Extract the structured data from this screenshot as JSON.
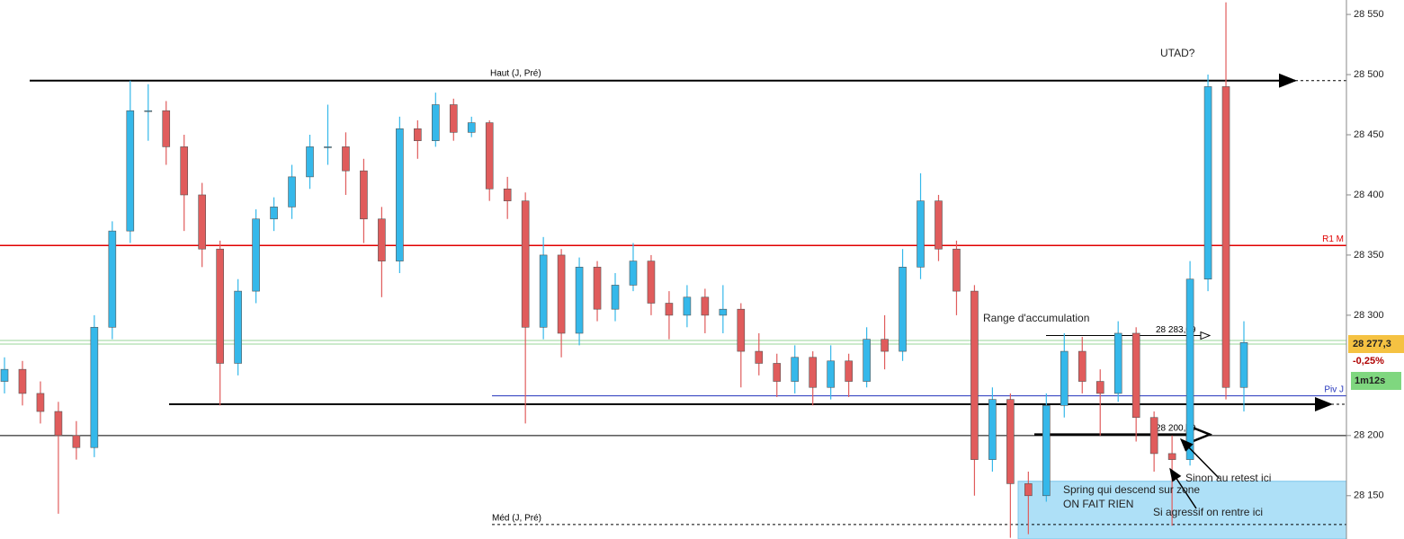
{
  "chart_data": {
    "type": "candlestick",
    "ylim": [
      28114,
      28562
    ],
    "yticks": [
      {
        "value": 28150,
        "label": "28 150"
      },
      {
        "value": 28200,
        "label": "28 200"
      },
      {
        "value": 28300,
        "label": "28 300"
      },
      {
        "value": 28350,
        "label": "28 350"
      },
      {
        "value": 28400,
        "label": "28 400"
      },
      {
        "value": 28450,
        "label": "28 450"
      },
      {
        "value": 28500,
        "label": "28 500"
      },
      {
        "value": 28550,
        "label": "28 550"
      }
    ],
    "up_color": "#35b8ea",
    "down_color": "#e05c5c",
    "series": {
      "open": [
        28245,
        28255,
        28235,
        28220,
        28200,
        28190,
        28290,
        28370,
        28470,
        28470,
        28440,
        28400,
        28355,
        28260,
        28320,
        28380,
        28390,
        28415,
        28440,
        28440,
        28420,
        28380,
        28345,
        28455,
        28445,
        28475,
        28452,
        28460,
        28405,
        28395,
        28290,
        28350,
        28285,
        28340,
        28305,
        28325,
        28345,
        28310,
        28300,
        28315,
        28300,
        28305,
        28270,
        28260,
        28245,
        28265,
        28240,
        28262,
        28245,
        28280,
        28270,
        28340,
        28395,
        28355,
        28320,
        28180,
        28230,
        28160,
        28150,
        28225,
        28270,
        28245,
        28235,
        28285,
        28215,
        28185,
        28180,
        28330,
        28490,
        28240
      ],
      "high": [
        28265,
        28262,
        28245,
        28228,
        28212,
        28300,
        28378,
        28495,
        28492,
        28478,
        28450,
        28410,
        28362,
        28330,
        28388,
        28398,
        28425,
        28450,
        28475,
        28452,
        28430,
        28390,
        28465,
        28462,
        28485,
        28480,
        28465,
        28462,
        28415,
        28402,
        28365,
        28355,
        28348,
        28345,
        28335,
        28360,
        28350,
        28320,
        28325,
        28322,
        28325,
        28310,
        28285,
        28268,
        28275,
        28270,
        28275,
        28268,
        28290,
        28300,
        28355,
        28418,
        28400,
        28362,
        28325,
        28240,
        28235,
        28170,
        28235,
        28285,
        28282,
        28255,
        28295,
        28290,
        28220,
        28200,
        28345,
        28500,
        28560,
        28295
      ],
      "low": [
        28235,
        28225,
        28210,
        28135,
        28180,
        28182,
        28280,
        28360,
        28445,
        28425,
        28370,
        28340,
        28225,
        28250,
        28310,
        28370,
        28380,
        28405,
        28425,
        28400,
        28360,
        28315,
        28335,
        28430,
        28440,
        28445,
        28448,
        28395,
        28380,
        28210,
        28280,
        28265,
        28275,
        28295,
        28295,
        28320,
        28300,
        28280,
        28290,
        28285,
        28285,
        28240,
        28250,
        28232,
        28235,
        28225,
        28230,
        28232,
        28240,
        28255,
        28262,
        28330,
        28345,
        28300,
        28150,
        28170,
        28115,
        28118,
        28145,
        28215,
        28235,
        28200,
        28228,
        28195,
        28170,
        28125,
        28175,
        28320,
        28230,
        28220
      ],
      "close": [
        28255,
        28235,
        28220,
        28200,
        28190,
        28290,
        28370,
        28470,
        28470,
        28440,
        28400,
        28355,
        28260,
        28320,
        28380,
        28390,
        28415,
        28440,
        28440,
        28420,
        28380,
        28345,
        28455,
        28445,
        28475,
        28452,
        28460,
        28405,
        28395,
        28290,
        28350,
        28285,
        28340,
        28305,
        28325,
        28345,
        28310,
        28300,
        28315,
        28300,
        28305,
        28270,
        28260,
        28245,
        28265,
        28240,
        28262,
        28245,
        28280,
        28270,
        28340,
        28395,
        28355,
        28320,
        28180,
        28230,
        28160,
        28150,
        28225,
        28270,
        28245,
        28235,
        28285,
        28215,
        28185,
        28180,
        28330,
        28490,
        28240,
        28277.3
      ]
    },
    "levels": [
      {
        "label": "Haut (J, Pré)",
        "value": 28495,
        "color": "#000000",
        "arrow": true
      },
      {
        "label": "R1 M",
        "value": 28358,
        "color": "#e00000"
      },
      {
        "value": 28279,
        "color": "#9ad49a"
      },
      {
        "value": 28276,
        "color": "#9ad49a"
      },
      {
        "label": "Piv J",
        "value": 28233,
        "color": "#2233bb"
      },
      {
        "value": 28226,
        "color": "#000000",
        "arrow": true
      },
      {
        "value": 28200,
        "color": "#000000"
      },
      {
        "label": "Méd (J, Pré)",
        "value": 28126,
        "color": "#000000",
        "dashed": true
      },
      {
        "label": "28 283,09",
        "value": 28283.09,
        "color": "#000000",
        "arrow": true
      },
      {
        "label": "28 200,89",
        "value": 28200.89,
        "color": "#000000",
        "arrow": true
      }
    ],
    "zone": {
      "top": 28162,
      "bottom": 28114,
      "color": "#aee0f7"
    },
    "annotations": [
      "UTAD?",
      "Range d'accumulation",
      "Spring qui descend sur zone",
      "ON FAIT RIEN",
      "Sinon au retest ici",
      "Si agressif on rentre ici"
    ],
    "last_price": {
      "value": 28277.3,
      "label": "28 277,3"
    },
    "change": {
      "value": -0.25,
      "label": "-0,25%"
    },
    "countdown": "1m12s"
  }
}
